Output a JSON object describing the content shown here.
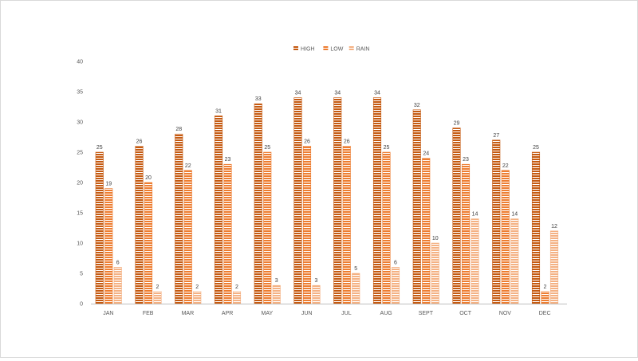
{
  "chart_data": {
    "type": "bar",
    "title": "",
    "xlabel": "",
    "ylabel": "",
    "categories": [
      "JAN",
      "FEB",
      "MAR",
      "APR",
      "MAY",
      "JUN",
      "JUL",
      "AUG",
      "SEPT",
      "OCT",
      "NOV",
      "DEC"
    ],
    "series": [
      {
        "name": "HIGH",
        "color": "#c55a11",
        "values": [
          25,
          26,
          28,
          31,
          33,
          34,
          34,
          34,
          32,
          29,
          27,
          25
        ]
      },
      {
        "name": "LOW",
        "color": "#ed7d31",
        "values": [
          19,
          20,
          22,
          23,
          25,
          26,
          26,
          25,
          24,
          23,
          22,
          2
        ]
      },
      {
        "name": "RAIN",
        "color": "#f4b183",
        "values": [
          6,
          2,
          2,
          2,
          3,
          3,
          5,
          6,
          10,
          14,
          14,
          12
        ]
      }
    ],
    "ylim": [
      0,
      40
    ],
    "yticks": [
      0,
      5,
      10,
      15,
      20,
      25,
      30,
      35,
      40
    ],
    "grid": false,
    "legend_position": "top-center",
    "data_labels": true,
    "bar_pattern": "horizontal-stripes"
  }
}
